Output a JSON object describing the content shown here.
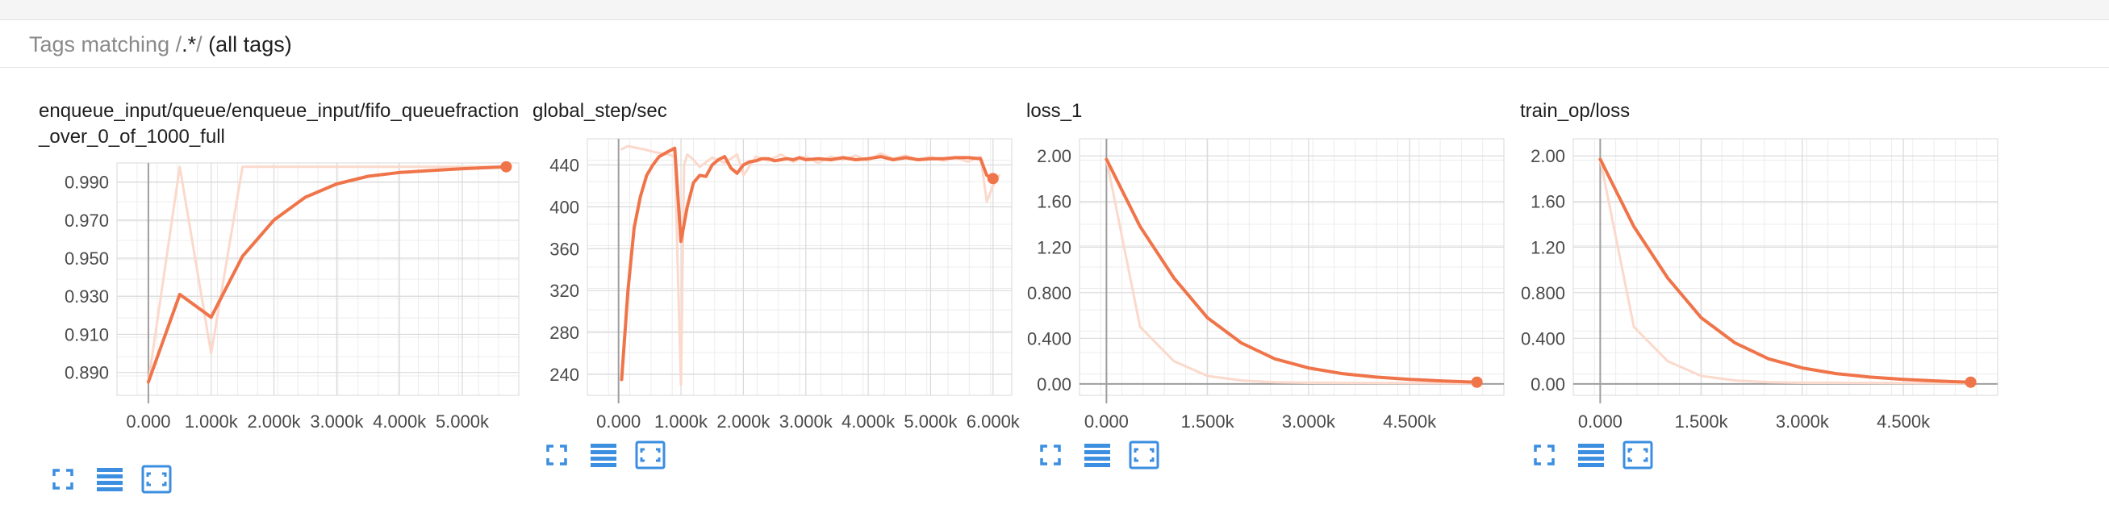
{
  "tag_filter": {
    "prefix": "Tags matching",
    "slash_open": "/",
    "pattern": ".*",
    "slash_close": "/",
    "suffix": "(all tags)"
  },
  "colors": {
    "main": "#f07449",
    "faint": "#fbd9cc",
    "grid": "#d9d9d9",
    "axis": "#9e9e9e",
    "tick_text": "#4a4a4a",
    "icon": "#3b8ee0"
  },
  "chart_data": [
    {
      "type": "line",
      "title": "enqueue_input/queue/enqueue_input/fifo_queuefraction_over_0_of_1000_full",
      "xlim": [
        -500,
        5900
      ],
      "ylim": [
        0.878,
        1.0
      ],
      "xticks": [
        0,
        1000,
        2000,
        3000,
        4000,
        5000
      ],
      "xtick_labels": [
        "0.000",
        "1.000k",
        "2.000k",
        "3.000k",
        "4.000k",
        "5.000k"
      ],
      "yticks": [
        0.89,
        0.91,
        0.93,
        0.95,
        0.97,
        0.99
      ],
      "ytick_labels": [
        "0.890",
        "0.910",
        "0.930",
        "0.950",
        "0.970",
        "0.990"
      ],
      "series": [
        {
          "role": "raw",
          "x": [
            0,
            500,
            1000,
            1500,
            2000,
            3000,
            4000,
            5000,
            5700
          ],
          "y": [
            0.885,
            0.998,
            0.9,
            0.998,
            0.998,
            0.998,
            0.998,
            0.998,
            0.998
          ]
        },
        {
          "role": "smoothed",
          "x": [
            0,
            500,
            1000,
            1500,
            2000,
            2500,
            3000,
            3500,
            4000,
            4500,
            5000,
            5700
          ],
          "y": [
            0.885,
            0.931,
            0.919,
            0.951,
            0.97,
            0.982,
            0.989,
            0.993,
            0.995,
            0.996,
            0.997,
            0.998
          ]
        }
      ]
    },
    {
      "type": "line",
      "title": "global_step/sec",
      "xlim": [
        -500,
        6300
      ],
      "ylim": [
        220,
        465
      ],
      "xticks": [
        0,
        1000,
        2000,
        3000,
        4000,
        5000,
        6000
      ],
      "xtick_labels": [
        "0.000",
        "1.000k",
        "2.000k",
        "3.000k",
        "4.000k",
        "5.000k",
        "6.000k"
      ],
      "yticks": [
        240,
        280,
        320,
        360,
        400,
        440
      ],
      "ytick_labels": [
        "240",
        "280",
        "320",
        "360",
        "400",
        "440"
      ],
      "series": [
        {
          "role": "raw",
          "x": [
            50,
            150,
            400,
            600,
            800,
            900,
            1000,
            1050,
            1100,
            1200,
            1300,
            1500,
            1700,
            1900,
            2000,
            2200,
            2400,
            2600,
            2800,
            3000,
            3200,
            3400,
            3600,
            3800,
            4000,
            4200,
            4400,
            4600,
            4800,
            5000,
            5200,
            5400,
            5600,
            5800,
            5900,
            6000,
            6100
          ],
          "y": [
            455,
            458,
            455,
            452,
            450,
            448,
            230,
            440,
            450,
            445,
            438,
            447,
            442,
            450,
            430,
            448,
            444,
            450,
            443,
            448,
            442,
            448,
            445,
            449,
            444,
            451,
            446,
            449,
            445,
            448,
            444,
            447,
            443,
            448,
            405,
            420,
            430
          ]
        },
        {
          "role": "smoothed",
          "x": [
            50,
            150,
            250,
            350,
            450,
            550,
            650,
            800,
            900,
            1000,
            1100,
            1200,
            1300,
            1400,
            1500,
            1600,
            1700,
            1800,
            1900,
            2000,
            2100,
            2200,
            2300,
            2400,
            2500,
            2600,
            2700,
            2800,
            2900,
            3000,
            3200,
            3400,
            3600,
            3800,
            4000,
            4200,
            4400,
            4600,
            4800,
            5000,
            5200,
            5400,
            5600,
            5800,
            5900,
            6000
          ],
          "y": [
            235,
            320,
            380,
            410,
            430,
            440,
            448,
            453,
            456,
            367,
            400,
            423,
            430,
            429,
            440,
            445,
            448,
            437,
            432,
            440,
            443,
            444,
            446,
            446,
            444,
            445,
            446,
            445,
            447,
            445,
            446,
            445,
            447,
            445,
            446,
            448,
            445,
            447,
            445,
            446,
            446,
            447,
            447,
            446,
            430,
            427
          ]
        }
      ]
    },
    {
      "type": "line",
      "title": "loss_1",
      "xlim": [
        -400,
        5900
      ],
      "ylim": [
        -0.1,
        2.15
      ],
      "xticks": [
        0,
        1500,
        3000,
        4500
      ],
      "xtick_labels": [
        "0.000",
        "1.500k",
        "3.000k",
        "4.500k"
      ],
      "yticks": [
        0,
        0.4,
        0.8,
        1.2,
        1.6,
        2.0
      ],
      "ytick_labels": [
        "0.00",
        "0.400",
        "0.800",
        "1.20",
        "1.60",
        "2.00"
      ],
      "series": [
        {
          "role": "raw",
          "x": [
            0,
            500,
            1000,
            1500,
            2000,
            2500,
            3000,
            5500
          ],
          "y": [
            1.97,
            0.5,
            0.2,
            0.07,
            0.03,
            0.015,
            0.01,
            0.005
          ]
        },
        {
          "role": "smoothed",
          "x": [
            0,
            500,
            1000,
            1500,
            2000,
            2500,
            3000,
            3500,
            4000,
            4500,
            5000,
            5500
          ],
          "y": [
            1.97,
            1.38,
            0.93,
            0.58,
            0.36,
            0.22,
            0.14,
            0.09,
            0.06,
            0.04,
            0.025,
            0.015
          ]
        }
      ]
    },
    {
      "type": "line",
      "title": "train_op/loss",
      "xlim": [
        -400,
        5900
      ],
      "ylim": [
        -0.1,
        2.15
      ],
      "xticks": [
        0,
        1500,
        3000,
        4500
      ],
      "xtick_labels": [
        "0.000",
        "1.500k",
        "3.000k",
        "4.500k"
      ],
      "yticks": [
        0,
        0.4,
        0.8,
        1.2,
        1.6,
        2.0
      ],
      "ytick_labels": [
        "0.00",
        "0.400",
        "0.800",
        "1.20",
        "1.60",
        "2.00"
      ],
      "series": [
        {
          "role": "raw",
          "x": [
            0,
            500,
            1000,
            1500,
            2000,
            2500,
            3000,
            5500
          ],
          "y": [
            1.97,
            0.5,
            0.2,
            0.07,
            0.03,
            0.015,
            0.01,
            0.005
          ]
        },
        {
          "role": "smoothed",
          "x": [
            0,
            500,
            1000,
            1500,
            2000,
            2500,
            3000,
            3500,
            4000,
            4500,
            5000,
            5500
          ],
          "y": [
            1.97,
            1.38,
            0.93,
            0.58,
            0.36,
            0.22,
            0.14,
            0.09,
            0.06,
            0.04,
            0.025,
            0.015
          ]
        }
      ]
    }
  ],
  "panel_buttons": [
    {
      "name": "expand",
      "icon": "expand-icon"
    },
    {
      "name": "toggle-log",
      "icon": "list-icon"
    },
    {
      "name": "fit-domain",
      "icon": "fit-domain-icon"
    }
  ]
}
